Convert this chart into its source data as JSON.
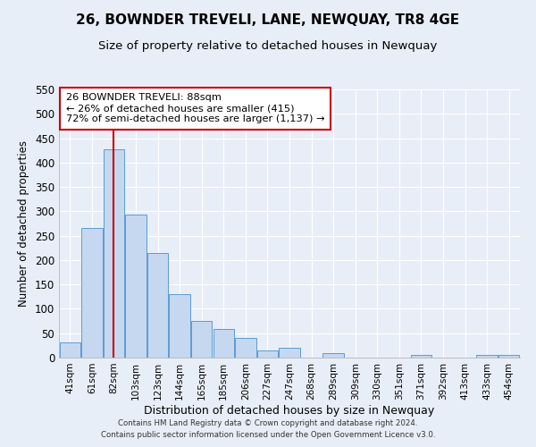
{
  "title": "26, BOWNDER TREVELI, LANE, NEWQUAY, TR8 4GE",
  "subtitle": "Size of property relative to detached houses in Newquay",
  "xlabel": "Distribution of detached houses by size in Newquay",
  "ylabel": "Number of detached properties",
  "bar_labels": [
    "41sqm",
    "61sqm",
    "82sqm",
    "103sqm",
    "123sqm",
    "144sqm",
    "165sqm",
    "185sqm",
    "206sqm",
    "227sqm",
    "247sqm",
    "268sqm",
    "289sqm",
    "309sqm",
    "330sqm",
    "351sqm",
    "371sqm",
    "392sqm",
    "413sqm",
    "433sqm",
    "454sqm"
  ],
  "bar_heights": [
    32,
    265,
    428,
    293,
    215,
    130,
    76,
    59,
    40,
    15,
    20,
    0,
    10,
    0,
    0,
    0,
    5,
    0,
    0,
    5,
    5
  ],
  "bar_color": "#c5d8f0",
  "bar_edge_color": "#5b9bd5",
  "vline_x_index": 2,
  "vline_color": "#cc0000",
  "ylim": [
    0,
    550
  ],
  "yticks": [
    0,
    50,
    100,
    150,
    200,
    250,
    300,
    350,
    400,
    450,
    500,
    550
  ],
  "annotation_title": "26 BOWNDER TREVELI: 88sqm",
  "annotation_line1": "← 26% of detached houses are smaller (415)",
  "annotation_line2": "72% of semi-detached houses are larger (1,137) →",
  "annotation_box_facecolor": "#ffffff",
  "annotation_box_edgecolor": "#cc0000",
  "footer1": "Contains HM Land Registry data © Crown copyright and database right 2024.",
  "footer2": "Contains public sector information licensed under the Open Government Licence v3.0.",
  "background_color": "#e8eef7",
  "plot_background": "#e8eef7",
  "grid_color": "#ffffff",
  "title_fontsize": 11,
  "subtitle_fontsize": 9.5,
  "xlabel_fontsize": 9,
  "ylabel_fontsize": 8.5
}
